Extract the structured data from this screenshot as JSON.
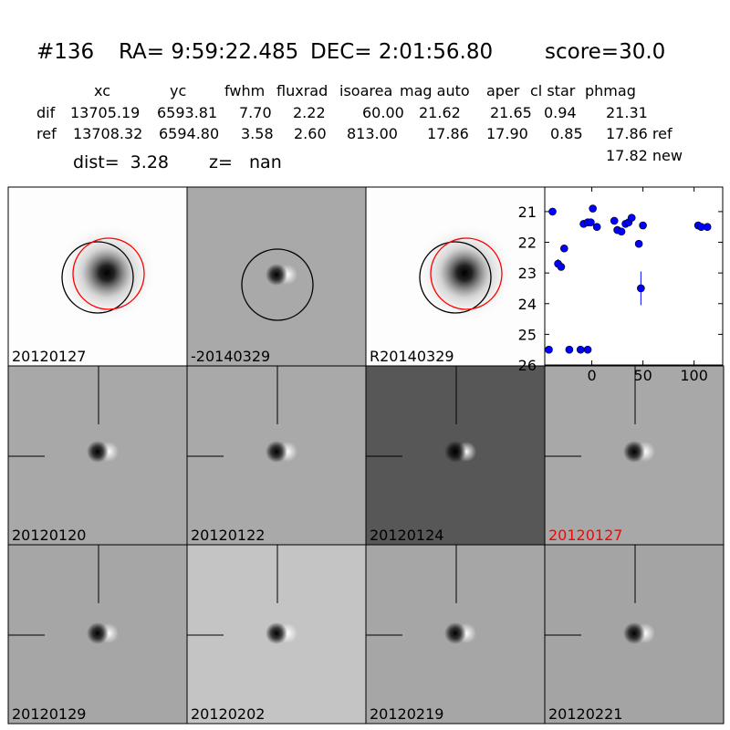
{
  "header": {
    "id": "#136",
    "ra": "RA= 9:59:22.485",
    "dec": "DEC= 2:01:56.80",
    "score": "score=30.0"
  },
  "table": {
    "columns": [
      "xc",
      "yc",
      "fwhm",
      "fluxrad",
      "isoarea",
      "mag auto",
      "aper",
      "cl star",
      "phmag"
    ],
    "rows": [
      {
        "name": "dif",
        "cells": [
          "13705.19",
          "6593.81",
          "7.70",
          "2.22",
          "60.00",
          "21.62",
          "21.65",
          "0.94",
          "21.31"
        ]
      },
      {
        "name": "ref",
        "cells": [
          "13708.32",
          "6594.80",
          "3.58",
          "2.60",
          "813.00",
          "17.86",
          "17.90",
          "0.85",
          "17.86 ref"
        ]
      }
    ],
    "extra": "17.82 new"
  },
  "dist": "dist=  3.28",
  "z": "z=   nan",
  "stamps": [
    {
      "label": "20120127"
    },
    {
      "label": "-20140329"
    },
    {
      "label": "R20140329"
    },
    {
      "label": "20120120"
    },
    {
      "label": "20120122"
    },
    {
      "label": "20120124"
    },
    {
      "label": "20120127",
      "color": "#ff0000"
    },
    {
      "label": "20120129"
    },
    {
      "label": "20120202"
    },
    {
      "label": "20120219"
    },
    {
      "label": "20120221"
    }
  ],
  "chart_data": {
    "type": "scatter",
    "x": [
      -42,
      -38.4,
      -33,
      -30,
      -27,
      -22,
      -11,
      -4,
      -8,
      -4,
      -1,
      1,
      5,
      22,
      25,
      29,
      33,
      36,
      39,
      46,
      48,
      50,
      104,
      107,
      113
    ],
    "values": [
      25.5,
      21.0,
      22.7,
      22.8,
      22.2,
      25.5,
      25.5,
      25.5,
      21.4,
      21.35,
      21.35,
      20.9,
      21.5,
      21.3,
      21.6,
      21.65,
      21.4,
      21.35,
      21.2,
      22.05,
      23.5,
      21.45,
      21.45,
      21.5,
      21.5
    ],
    "errors": [
      null,
      null,
      0.15,
      0.1,
      null,
      null,
      null,
      null,
      null,
      null,
      null,
      null,
      null,
      null,
      null,
      null,
      null,
      null,
      null,
      null,
      0.55,
      null,
      null,
      null,
      null
    ],
    "color": "#0000ff",
    "xlim": [
      -46,
      128
    ],
    "ylim": [
      26,
      20.2
    ],
    "xticks": [
      0,
      50,
      100
    ],
    "yticks": [
      21,
      22,
      23,
      24,
      25,
      26
    ]
  }
}
